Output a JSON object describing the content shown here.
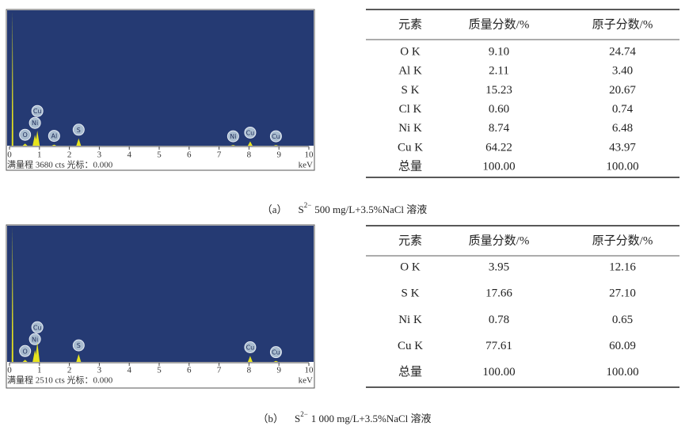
{
  "figures": [
    {
      "spectrum": {
        "xlim": [
          0,
          10
        ],
        "xticks": [
          0,
          1,
          2,
          3,
          4,
          5,
          6,
          7,
          8,
          9,
          10
        ],
        "ylim": [
          0,
          3680
        ],
        "footer": "满量程 3680 cts 光标：0.000",
        "x_unit": "keV",
        "peaks": [
          {
            "energy": 0.1,
            "counts": 3680
          },
          {
            "label": "O",
            "energy": 0.52,
            "counts": 60
          },
          {
            "label": "Ni",
            "energy": 0.85,
            "counts": 300
          },
          {
            "label": "Cu",
            "energy": 0.93,
            "counts": 410
          },
          {
            "label": "Al",
            "energy": 1.49,
            "counts": 30
          },
          {
            "label": "S",
            "energy": 2.31,
            "counts": 200
          },
          {
            "label": "Ni",
            "energy": 7.47,
            "counts": 20
          },
          {
            "label": "Cu",
            "energy": 8.04,
            "counts": 120
          },
          {
            "label": "Cu",
            "energy": 8.9,
            "counts": 20
          }
        ]
      },
      "table": {
        "header": [
          "元素",
          "质量分数/%",
          "原子分数/%"
        ],
        "rows": [
          [
            "O K",
            "9.10",
            "24.74"
          ],
          [
            "Al K",
            "2.11",
            "3.40"
          ],
          [
            "S K",
            "15.23",
            "20.67"
          ],
          [
            "Cl K",
            "0.60",
            "0.74"
          ],
          [
            "Ni K",
            "8.74",
            "6.48"
          ],
          [
            "Cu K",
            "64.22",
            "43.97"
          ],
          [
            "总量",
            "100.00",
            "100.00"
          ]
        ]
      },
      "caption": {
        "label": "（a）",
        "ion": "S",
        "charge": "2−",
        "text": "500 mg/L+3.5%NaCl 溶液"
      }
    },
    {
      "spectrum": {
        "xlim": [
          0,
          10
        ],
        "xticks": [
          0,
          1,
          2,
          3,
          4,
          5,
          6,
          7,
          8,
          9,
          10
        ],
        "ylim": [
          0,
          2510
        ],
        "footer": "满量程 2510 cts 光标：0.000",
        "x_unit": "keV",
        "peaks": [
          {
            "energy": 0.1,
            "counts": 2510
          },
          {
            "label": "O",
            "energy": 0.52,
            "counts": 40
          },
          {
            "label": "Ni",
            "energy": 0.85,
            "counts": 220
          },
          {
            "label": "Cu",
            "energy": 0.93,
            "counts": 365
          },
          {
            "label": "S",
            "energy": 2.31,
            "counts": 145
          },
          {
            "label": "Cu",
            "energy": 8.04,
            "counts": 110
          },
          {
            "label": "Cu",
            "energy": 8.9,
            "counts": 20
          }
        ]
      },
      "table": {
        "header": [
          "元素",
          "质量分数/%",
          "原子分数/%"
        ],
        "rows": [
          [
            "O K",
            "3.95",
            "12.16"
          ],
          [
            "S K",
            "17.66",
            "27.10"
          ],
          [
            "Ni K",
            "0.78",
            "0.65"
          ],
          [
            "Cu K",
            "77.61",
            "60.09"
          ],
          [
            "总量",
            "100.00",
            "100.00"
          ]
        ]
      },
      "caption": {
        "label": "（b）",
        "ion": "S",
        "charge": "2−",
        "text": "1 000 mg/L+3.5%NaCl 溶液"
      }
    }
  ]
}
